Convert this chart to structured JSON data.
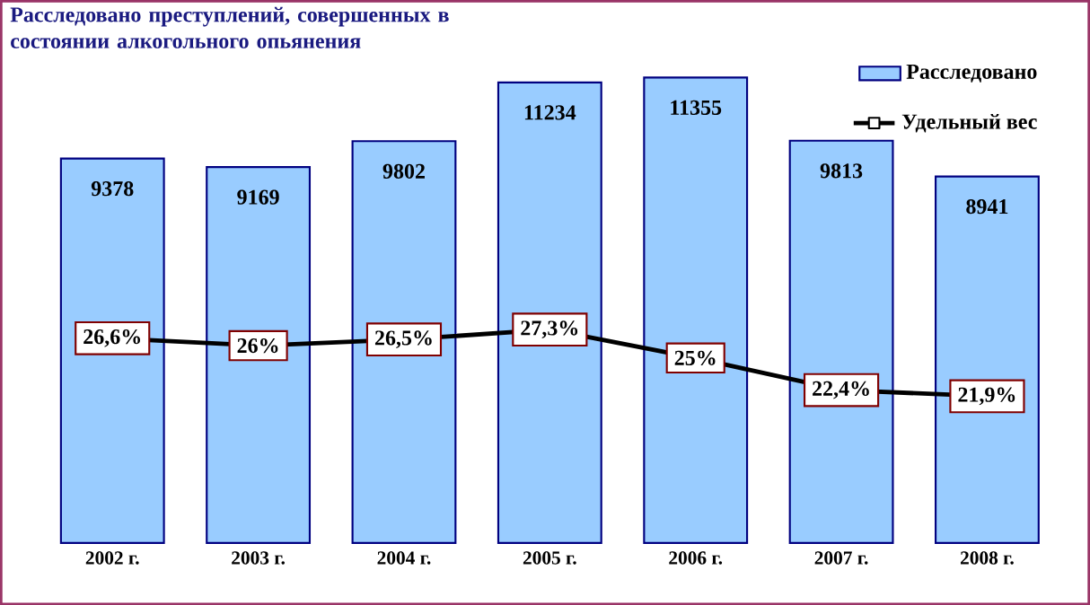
{
  "chart_data": {
    "type": "bar",
    "title": "Расследовано преступлений, совершенных в состоянии алкогольного опьянения",
    "categories": [
      "2002 г.",
      "2003 г.",
      "2004 г.",
      "2005 г.",
      "2006 г.",
      "2007 г.",
      "2008 г."
    ],
    "series": [
      {
        "name": "Расследовано",
        "color": "#99ccff",
        "values": [
          9378,
          9169,
          9802,
          11234,
          11355,
          9813,
          8941
        ],
        "value_labels": [
          "9378",
          "9169",
          "9802",
          "11234",
          "11355",
          "9813",
          "8941"
        ]
      },
      {
        "name": "Удельный вес",
        "type": "line",
        "axis": "y2",
        "color": "#000000",
        "marker": "square",
        "values": [
          26.6,
          26,
          26.5,
          27.3,
          25,
          22.4,
          21.9
        ],
        "value_labels": [
          "26,6%",
          "26%",
          "26,5%",
          "27,3%",
          "25%",
          "22,4%",
          "21,9%"
        ]
      }
    ],
    "tick_labels": "x",
    "legend": "top right",
    "grid": false
  }
}
